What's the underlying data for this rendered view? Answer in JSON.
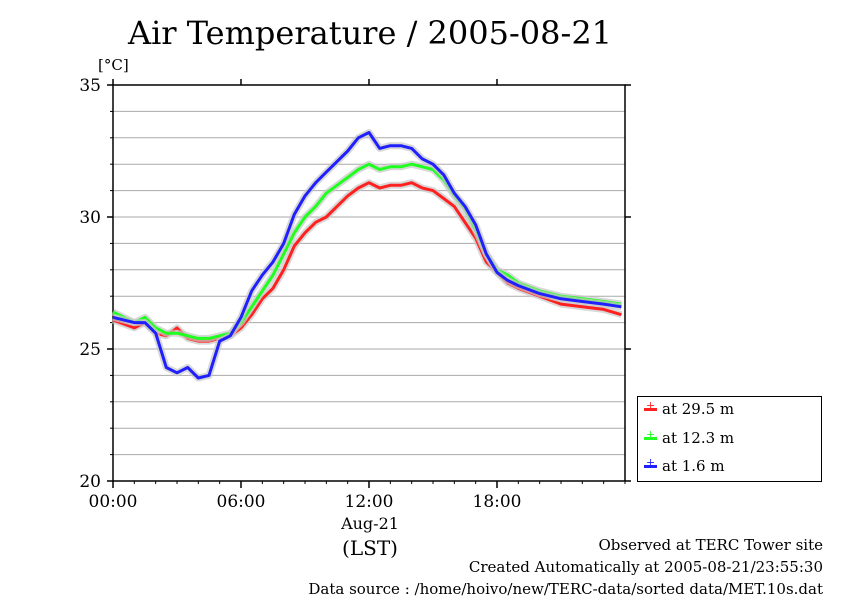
{
  "chart_data": {
    "type": "line",
    "title": "Air Temperature / 2005-08-21",
    "ylabel": "[°C]",
    "xlabel": "(LST)",
    "x_date_label": "Aug-21",
    "ylim": [
      20,
      35
    ],
    "xlim": [
      "00:00",
      "24:00"
    ],
    "x_ticks": [
      "00:00",
      "06:00",
      "12:00",
      "18:00"
    ],
    "y_ticks": [
      20,
      25,
      30,
      35
    ],
    "grid": true,
    "legend_placement": "bottom-right outside",
    "x": [
      "00:00",
      "01:00",
      "01:30",
      "02:00",
      "02:30",
      "03:00",
      "03:30",
      "04:00",
      "04:30",
      "05:00",
      "05:30",
      "06:00",
      "06:30",
      "07:00",
      "07:30",
      "08:00",
      "08:30",
      "09:00",
      "09:30",
      "10:00",
      "10:30",
      "11:00",
      "11:30",
      "12:00",
      "12:30",
      "13:00",
      "13:30",
      "14:00",
      "14:30",
      "15:00",
      "15:30",
      "16:00",
      "16:30",
      "17:00",
      "17:30",
      "18:00",
      "18:30",
      "19:00",
      "20:00",
      "21:00",
      "22:00",
      "23:00",
      "23:50"
    ],
    "series": [
      {
        "name": "at 29.5 m",
        "color": "#ff2020",
        "values": [
          26.1,
          25.8,
          26.0,
          25.6,
          25.5,
          25.8,
          25.4,
          25.3,
          25.3,
          25.4,
          25.5,
          25.8,
          26.3,
          26.9,
          27.3,
          28.0,
          28.9,
          29.4,
          29.8,
          30.0,
          30.4,
          30.8,
          31.1,
          31.3,
          31.1,
          31.2,
          31.2,
          31.3,
          31.1,
          31.0,
          30.7,
          30.4,
          29.8,
          29.2,
          28.3,
          27.9,
          27.5,
          27.3,
          27.0,
          26.7,
          26.6,
          26.5,
          26.3
        ]
      },
      {
        "name": "at 12.3 m",
        "color": "#20ff20",
        "values": [
          26.4,
          26.0,
          26.2,
          25.8,
          25.6,
          25.6,
          25.5,
          25.4,
          25.4,
          25.5,
          25.6,
          26.0,
          26.6,
          27.2,
          27.8,
          28.6,
          29.4,
          30.0,
          30.4,
          30.9,
          31.2,
          31.5,
          31.8,
          32.0,
          31.8,
          31.9,
          31.9,
          32.0,
          31.9,
          31.8,
          31.4,
          30.8,
          30.3,
          29.5,
          28.6,
          28.0,
          27.8,
          27.5,
          27.2,
          27.0,
          26.9,
          26.8,
          26.7
        ]
      },
      {
        "name": "at 1.6 m",
        "color": "#2020ff",
        "values": [
          26.2,
          26.0,
          26.0,
          25.6,
          24.3,
          24.1,
          24.3,
          23.9,
          24.0,
          25.3,
          25.5,
          26.2,
          27.2,
          27.8,
          28.3,
          29.0,
          30.1,
          30.8,
          31.3,
          31.7,
          32.1,
          32.5,
          33.0,
          33.2,
          32.6,
          32.7,
          32.7,
          32.6,
          32.2,
          32.0,
          31.6,
          30.9,
          30.4,
          29.7,
          28.6,
          27.9,
          27.6,
          27.4,
          27.1,
          26.9,
          26.8,
          26.7,
          26.6
        ]
      }
    ]
  },
  "legend": [
    {
      "label": "at 29.5 m",
      "color": "#ff2020"
    },
    {
      "label": "at 12.3 m",
      "color": "#20ff20"
    },
    {
      "label": "at 1.6 m",
      "color": "#2020ff"
    }
  ],
  "footer": {
    "line1": "Observed at TERC Tower site",
    "line2": "Created Automatically at 2005-08-21/23:55:30",
    "line3": "Data source : /home/hoivo/new/TERC-data/sorted data/MET.10s.dat"
  }
}
